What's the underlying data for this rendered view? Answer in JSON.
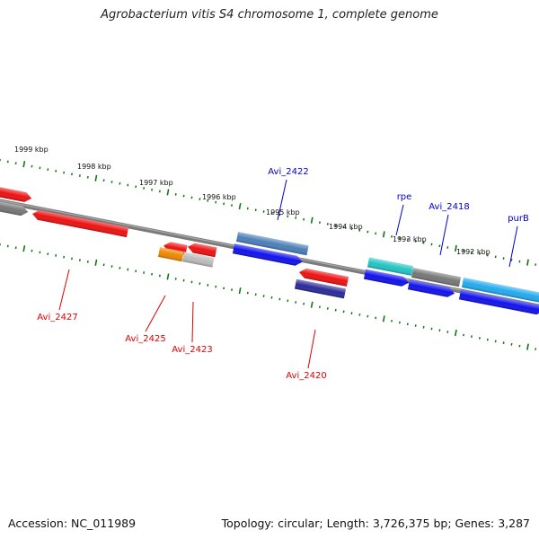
{
  "title": "Agrobacterium vitis S4 chromosome 1, complete genome",
  "footer": {
    "accession": "Accession: NC_011989",
    "summary": "Topology: circular; Length: 3,726,375 bp; Genes: 3,287"
  },
  "colors": {
    "red": "#ee1111",
    "blue": "#1111ee",
    "teal": "#22c4c4",
    "sky": "#22aaee",
    "steel": "#4a7fb8",
    "grey": "#777777",
    "lightgrey": "#bbbbbb",
    "orange": "#ee8800",
    "navy": "#2a2a99",
    "tick_green": "#117711",
    "label_red": "#dd0000",
    "label_blue": "#0000cc"
  },
  "scale_labels": [
    "1999 kbp",
    "1998 kbp",
    "1997 kbp",
    "1996 kbp",
    "1995 kbp",
    "1994 kbp",
    "1993 kbp",
    "1992 kbp"
  ],
  "gene_labels": {
    "top": [
      "Avi_2422",
      "rpe",
      "Avi_2418",
      "purB"
    ],
    "bottom": [
      "Avi_2427",
      "Avi_2425",
      "Avi_2423",
      "Avi_2420"
    ]
  }
}
